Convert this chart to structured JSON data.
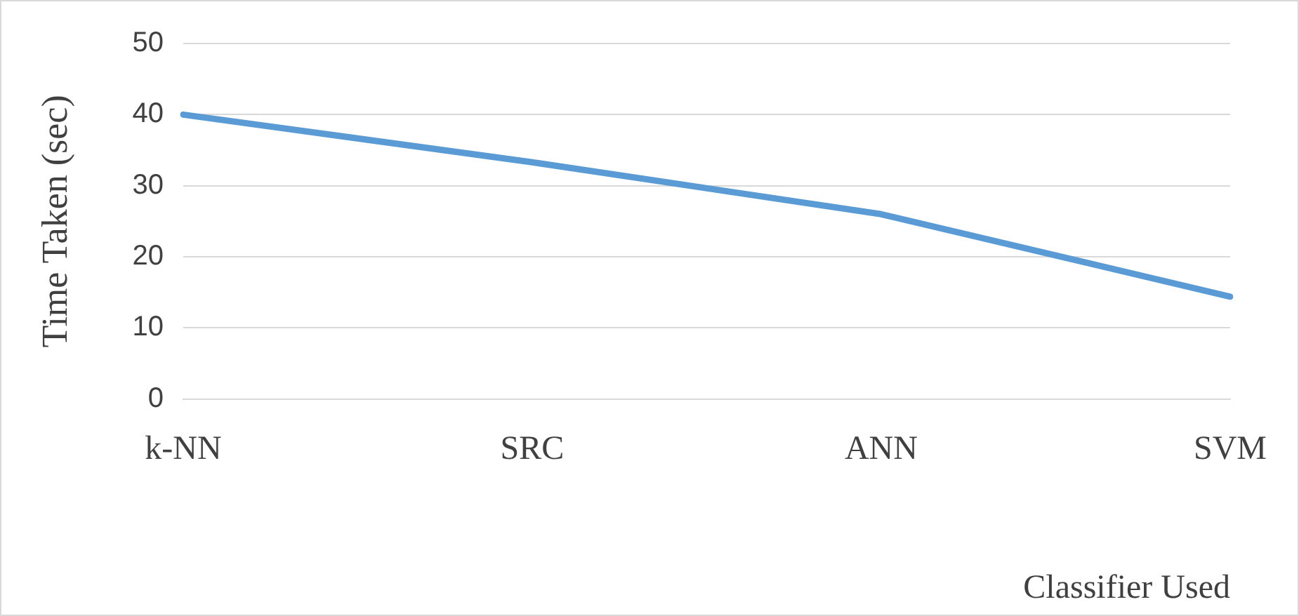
{
  "chart_data": {
    "type": "line",
    "xlabel": "Classifier Used",
    "ylabel": "Time Taken (sec)",
    "categories": [
      "k-NN",
      "SRC",
      "ANN",
      "SVM"
    ],
    "series": [
      {
        "color": "#5b9bd5",
        "values": [
          40,
          33.3,
          26,
          14.4
        ]
      }
    ],
    "ylim": [
      0,
      50
    ],
    "yticks": [
      0,
      10,
      20,
      30,
      40,
      50
    ],
    "grid": "y",
    "legend": false,
    "marker": "none"
  }
}
